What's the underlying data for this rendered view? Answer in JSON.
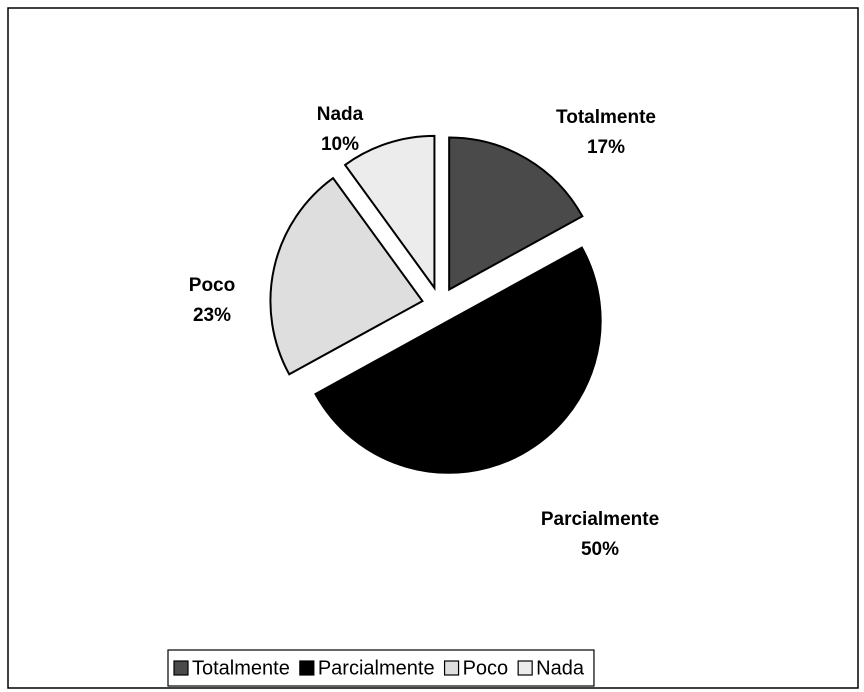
{
  "chart_data": {
    "type": "pie",
    "categories": [
      "Totalmente",
      "Parcialmente",
      "Poco",
      "Nada"
    ],
    "values": [
      17,
      50,
      23,
      10
    ],
    "value_labels": [
      "17%",
      "50%",
      "23%",
      "10%"
    ],
    "colors": [
      "#4a4a4a",
      "#000000",
      "#dedede",
      "#ececec"
    ],
    "legend": "bottom"
  }
}
